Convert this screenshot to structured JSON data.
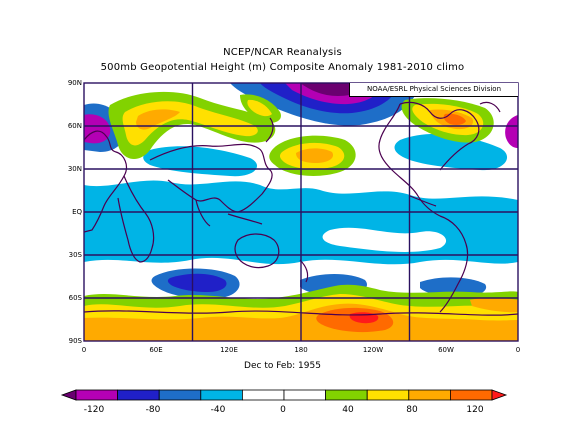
{
  "title_line1": "NCEP/NCAR Reanalysis",
  "title_line2": "500mb Geopotential Height (m) Composite Anomaly 1981-2010 climo",
  "credit": "NOAA/ESRL Physical Sciences Division",
  "period": "Dec to Feb: 1955",
  "lat_labels": [
    "90N",
    "60N",
    "30N",
    "EQ",
    "30S",
    "60S",
    "90S"
  ],
  "lon_labels": [
    "0",
    "60E",
    "120E",
    "180",
    "120W",
    "60W",
    "0"
  ],
  "colorbar": {
    "tick_labels": [
      "-120",
      "-80",
      "-40",
      "0",
      "40",
      "80",
      "120"
    ],
    "colors": [
      "#6a0070",
      "#b400b4",
      "#2020c8",
      "#1e6ec8",
      "#00b4e6",
      "#ffffff",
      "#ffffff",
      "#82d200",
      "#ffe000",
      "#ffaa00",
      "#ff6a00",
      "#ff1a1a"
    ]
  },
  "legend_colors": {
    "deep_purple": "#6a0070",
    "purple": "#b400b4",
    "navy": "#2020c8",
    "blue": "#1e6ec8",
    "cyan": "#00b4e6",
    "white": "#ffffff",
    "green": "#82d200",
    "yellow": "#ffe000",
    "light_orange": "#ffaa00",
    "orange": "#ff6a00",
    "red": "#ff1a1a",
    "coast": "#4b0050",
    "grid": "#2a1060"
  }
}
